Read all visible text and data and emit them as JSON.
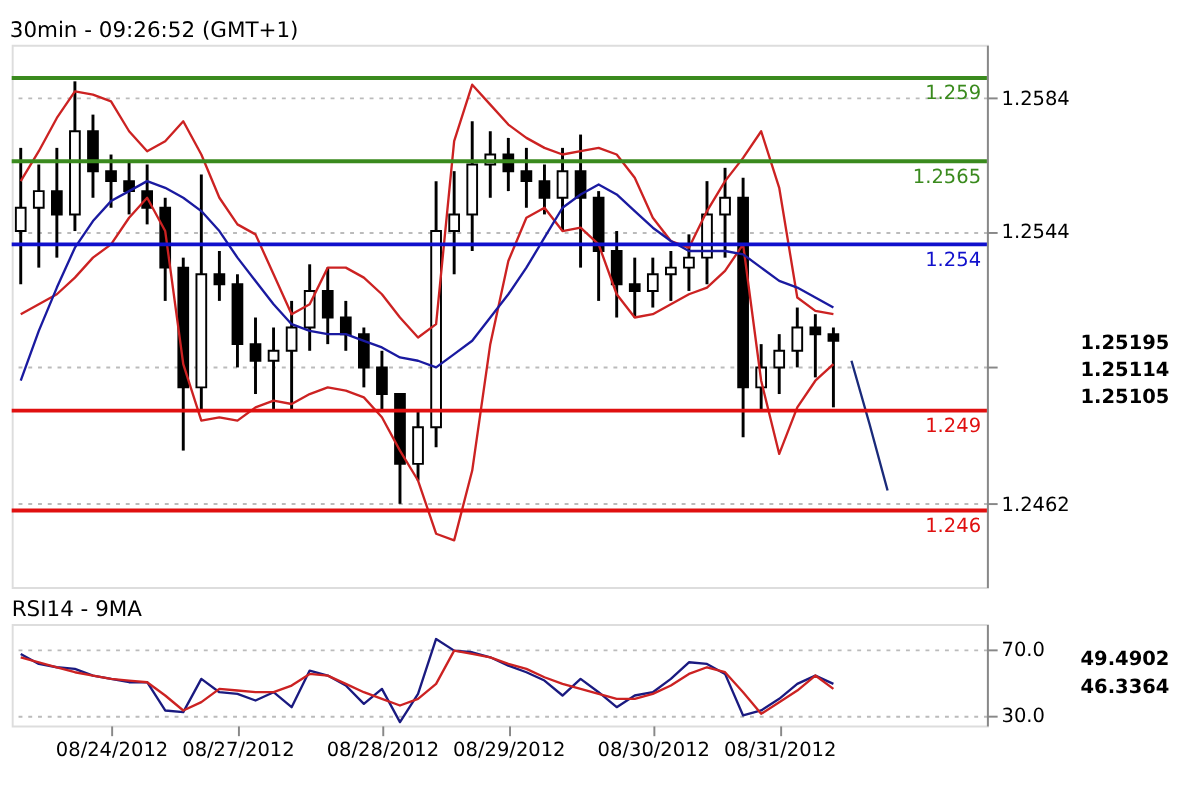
{
  "chart_data": [
    {
      "type": "candlestick",
      "title": "30min - 09:26:52 (GMT+1)",
      "categories": [
        null,
        null,
        null,
        null,
        null,
        null,
        null,
        null,
        null,
        null,
        null,
        null,
        null,
        null,
        null,
        null,
        null,
        null,
        null,
        null,
        null,
        null,
        null,
        null,
        null,
        null,
        null,
        null,
        null,
        null,
        null,
        null,
        null,
        null,
        null,
        null,
        null,
        null,
        null,
        null,
        null,
        null,
        null,
        null,
        null,
        null,
        null,
        null,
        null,
        null,
        null,
        null,
        null,
        null
      ],
      "ohlc": [
        [
          1.2544,
          1.2569,
          1.2528,
          1.2551
        ],
        [
          1.2551,
          1.2564,
          1.2533,
          1.2556
        ],
        [
          1.2556,
          1.2569,
          1.2536,
          1.2549
        ],
        [
          1.2549,
          1.2589,
          1.2544,
          1.2574
        ],
        [
          1.2574,
          1.2579,
          1.2554,
          1.2562
        ],
        [
          1.2562,
          1.2567,
          1.2551,
          1.2559
        ],
        [
          1.2559,
          1.2565,
          1.2549,
          1.2556
        ],
        [
          1.2556,
          1.2564,
          1.2546,
          1.2551
        ],
        [
          1.2551,
          1.2554,
          1.2523,
          1.2533
        ],
        [
          1.2533,
          1.2536,
          1.2478,
          1.2497
        ],
        [
          1.2497,
          1.2561,
          1.249,
          1.2531
        ],
        [
          1.2531,
          1.2538,
          1.2523,
          1.2528
        ],
        [
          1.2528,
          1.2531,
          1.2503,
          1.251
        ],
        [
          1.251,
          1.2518,
          1.2495,
          1.2505
        ],
        [
          1.2505,
          1.2515,
          1.249,
          1.2508
        ],
        [
          1.2508,
          1.2523,
          1.249,
          1.2515
        ],
        [
          1.2515,
          1.2534,
          1.2508,
          1.2526
        ],
        [
          1.2526,
          1.2533,
          1.251,
          1.2518
        ],
        [
          1.2518,
          1.2523,
          1.2508,
          1.2513
        ],
        [
          1.2513,
          1.2515,
          1.2497,
          1.2503
        ],
        [
          1.2503,
          1.2508,
          1.249,
          1.2495
        ],
        [
          1.2495,
          1.2495,
          1.2462,
          1.2474
        ],
        [
          1.2474,
          1.249,
          1.2469,
          1.2485
        ],
        [
          1.2485,
          1.2559,
          1.2479,
          1.2544
        ],
        [
          1.2544,
          1.2562,
          1.2531,
          1.2549
        ],
        [
          1.2549,
          1.2577,
          1.2538,
          1.2564
        ],
        [
          1.2564,
          1.2574,
          1.2554,
          1.2567
        ],
        [
          1.2567,
          1.2572,
          1.2556,
          1.2562
        ],
        [
          1.2562,
          1.2569,
          1.2551,
          1.2559
        ],
        [
          1.2559,
          1.2564,
          1.2549,
          1.2554
        ],
        [
          1.2554,
          1.2569,
          1.2544,
          1.2562
        ],
        [
          1.2562,
          1.2573,
          1.2533,
          1.2554
        ],
        [
          1.2554,
          1.2556,
          1.2523,
          1.2538
        ],
        [
          1.2538,
          1.2544,
          1.2518,
          1.2528
        ],
        [
          1.2528,
          1.2536,
          1.2518,
          1.2526
        ],
        [
          1.2526,
          1.2536,
          1.2521,
          1.2531
        ],
        [
          1.2531,
          1.2538,
          1.2523,
          1.2533
        ],
        [
          1.2533,
          1.2543,
          1.2526,
          1.2536
        ],
        [
          1.2536,
          1.2559,
          1.2528,
          1.2549
        ],
        [
          1.2549,
          1.2563,
          1.2536,
          1.2554
        ],
        [
          1.2554,
          1.256,
          1.2482,
          1.2497
        ],
        [
          1.2497,
          1.251,
          1.249,
          1.2503
        ],
        [
          1.2503,
          1.2513,
          1.2495,
          1.2508
        ],
        [
          1.2508,
          1.2521,
          1.2503,
          1.2515
        ],
        [
          1.2515,
          1.2519,
          1.25,
          1.2513
        ],
        [
          1.2513,
          1.2515,
          1.2491,
          1.2511
        ],
        null,
        null,
        null,
        null,
        null,
        null,
        null,
        null
      ],
      "series": [
        {
          "type": "line",
          "color": "#cc2222",
          "values": [
            1.2559,
            1.2568,
            1.2578,
            1.2586,
            1.2585,
            1.2583,
            1.2574,
            1.2568,
            1.2571,
            1.2577,
            1.2567,
            1.2554,
            1.2546,
            1.2543,
            1.2531,
            1.2519,
            1.2522,
            1.2533,
            1.2533,
            1.253,
            1.2525,
            1.2518,
            1.2512,
            1.2516,
            1.2571,
            1.2588,
            1.2582,
            1.2576,
            1.2572,
            1.2569,
            1.2567,
            1.2568,
            1.2569,
            1.2567,
            1.256,
            1.2548,
            1.2541,
            1.2539,
            1.255,
            1.2559,
            1.2566,
            1.2574,
            1.2557,
            1.2524,
            1.252,
            1.2519,
            null,
            null,
            null,
            null,
            null,
            null,
            null,
            null
          ]
        },
        {
          "type": "line",
          "color": "#cc2222",
          "values": [
            1.2519,
            1.2522,
            1.2525,
            1.253,
            1.2536,
            1.254,
            1.2548,
            1.2554,
            1.2544,
            1.2504,
            1.2487,
            1.2488,
            1.2487,
            1.2491,
            1.2493,
            1.2492,
            1.2495,
            1.2497,
            1.2496,
            1.2494,
            1.2488,
            1.2478,
            1.2469,
            1.2453,
            1.2451,
            1.2472,
            1.251,
            1.2535,
            1.2548,
            1.2551,
            1.2544,
            1.2545,
            1.254,
            1.2525,
            1.2518,
            1.2519,
            1.2522,
            1.2525,
            1.2527,
            1.2532,
            1.254,
            1.2499,
            1.2477,
            1.2491,
            1.2499,
            1.2504,
            null,
            null,
            null,
            null,
            null,
            null,
            null,
            null
          ]
        },
        {
          "type": "line",
          "color": "#1a1aa0",
          "values": [
            1.2499,
            1.2514,
            1.2527,
            1.2539,
            1.2547,
            1.2553,
            1.2556,
            1.2559,
            1.2557,
            1.2554,
            1.255,
            1.2544,
            1.2536,
            1.2529,
            1.2522,
            1.2516,
            1.2514,
            1.2513,
            1.2513,
            1.2511,
            1.2509,
            1.2506,
            1.2505,
            1.2503,
            1.2507,
            1.2511,
            1.2518,
            1.2525,
            1.2533,
            1.2542,
            1.2551,
            1.2555,
            1.2558,
            1.2555,
            1.255,
            1.2545,
            1.2541,
            1.2538,
            1.2538,
            1.2538,
            1.2537,
            1.2533,
            1.2529,
            1.2527,
            1.2524,
            1.2521,
            null,
            null,
            null,
            null,
            null,
            null,
            null,
            null
          ]
        },
        {
          "type": "line",
          "color": "#1a2a7a",
          "values": [
            null,
            null,
            null,
            null,
            null,
            null,
            null,
            null,
            null,
            null,
            null,
            null,
            null,
            null,
            null,
            null,
            null,
            null,
            null,
            null,
            null,
            null,
            null,
            null,
            null,
            null,
            null,
            null,
            null,
            null,
            null,
            null,
            null,
            null,
            null,
            null,
            null,
            null,
            null,
            null,
            null,
            null,
            null,
            null,
            null,
            null,
            1.2505,
            1.2486,
            1.2466,
            null,
            null,
            null,
            null,
            null
          ]
        }
      ],
      "ref_lines": [
        {
          "axis": "y",
          "value": 1.259,
          "label": "1.259",
          "color": "#3a8a1e"
        },
        {
          "axis": "y",
          "value": 1.2565,
          "label": "1.2565",
          "color": "#3a8a1e"
        },
        {
          "axis": "y",
          "value": 1.254,
          "label": "1.254",
          "color": "#1010cc"
        },
        {
          "axis": "y",
          "value": 1.249,
          "label": "1.249",
          "color": "#e01010"
        },
        {
          "axis": "y",
          "value": 1.246,
          "label": "1.246",
          "color": "#e01010"
        }
      ],
      "annotations": [
        "1.25195",
        "1.25114",
        "1.25105"
      ],
      "ylim": [
        1.2437,
        1.26
      ],
      "yticks": [
        1.2584,
        1.2544,
        {
          "value": 1.2503,
          "label": null
        },
        1.2462
      ],
      "grid": "y",
      "tick_labels": "y",
      "line_style": "solid"
    },
    {
      "type": "line",
      "title": "RSI14 - 9MA",
      "categories": [
        null,
        null,
        null,
        null,
        null,
        "08/24/2012",
        null,
        null,
        null,
        null,
        null,
        null,
        "08/27/2012",
        null,
        null,
        null,
        null,
        null,
        null,
        null,
        "08/28/2012",
        null,
        null,
        null,
        null,
        null,
        null,
        "08/29/2012",
        null,
        null,
        null,
        null,
        null,
        null,
        null,
        "08/30/2012",
        null,
        null,
        null,
        null,
        null,
        null,
        "08/31/2012",
        null,
        null,
        null,
        null,
        null,
        null,
        null,
        null,
        null,
        null,
        null
      ],
      "series": [
        {
          "color": "#1a1a80",
          "values": [
            67,
            61,
            59,
            58,
            54,
            52,
            50,
            50,
            33,
            32,
            52,
            44,
            43,
            39,
            44,
            35,
            57,
            54,
            48,
            37,
            46,
            26,
            43,
            76,
            69,
            68,
            65,
            60,
            56,
            51,
            42,
            52,
            44,
            35,
            42,
            44,
            52,
            62,
            61,
            55,
            30,
            33,
            40,
            49,
            54,
            49,
            null,
            null,
            null,
            null,
            null,
            null,
            null,
            null
          ]
        },
        {
          "color": "#cc2222",
          "values": [
            65,
            62,
            59,
            56,
            54,
            52,
            51,
            50,
            42,
            33,
            38,
            46,
            45,
            44,
            44,
            48,
            55,
            54,
            49,
            44,
            40,
            36,
            40,
            49,
            69,
            67,
            65,
            61,
            58,
            53,
            49,
            46,
            43,
            40,
            40,
            43,
            48,
            55,
            59,
            56,
            44,
            31,
            38,
            45,
            54,
            46,
            null,
            null,
            null,
            null,
            null,
            null,
            null,
            null
          ]
        }
      ],
      "annotations": [
        "49.4902",
        "46.3364"
      ],
      "ylim": [
        24,
        85
      ],
      "yticks": [
        {
          "value": 70,
          "label": "70.0"
        },
        {
          "value": 30,
          "label": "30.0"
        }
      ],
      "grid": "y",
      "line_style": "solid"
    }
  ]
}
